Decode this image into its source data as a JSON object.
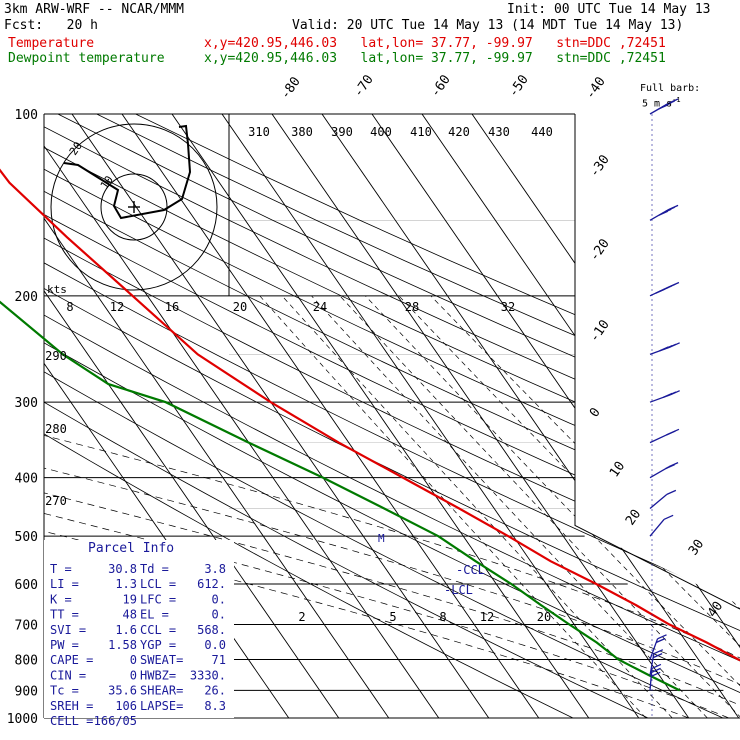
{
  "header": {
    "model": "3km ARW-WRF -- NCAR/MMM",
    "init": "Init: 00 UTC Tue 14 May 13",
    "fcst": "Fcst:   20 h",
    "valid": "Valid: 20 UTC Tue 14 May 13 (14 MDT Tue 14 May 13)",
    "temp_label": "Temperature",
    "dew_label": "Dewpoint temperature",
    "location": "x,y=420.95,446.03   lat,lon= 37.77, -99.97   stn=DDC ,72451"
  },
  "wind_barb_legend": {
    "line1": "Full barb:",
    "line2": "5 m s",
    "sup": "-1"
  },
  "hodograph": {
    "units": "kts",
    "ring_labels": [
      "10",
      "20"
    ]
  },
  "colors": {
    "temperature": "#e00000",
    "dewpoint": "#007a00",
    "barbs": "#1a1a9a",
    "moist_adiabat": "#000000"
  },
  "parcel_info": {
    "title": "Parcel Info",
    "rows": [
      [
        "T  =",
        "30.8",
        "Td =",
        "3.8"
      ],
      [
        "LI =",
        "1.3",
        "LCL =",
        "612."
      ],
      [
        "K  =",
        "19",
        "LFC =",
        "0."
      ],
      [
        "TT =",
        "48",
        "EL  =",
        "0."
      ],
      [
        "SVI =",
        "1.6",
        "CCL =",
        "568."
      ],
      [
        "PW =",
        "1.58",
        "YGP =",
        "0.0"
      ],
      [
        "CAPE =",
        "0",
        "SWEAT=",
        "71"
      ],
      [
        "CIN =",
        "0",
        "HWBZ=",
        "3330."
      ],
      [
        "Tc =",
        "35.6",
        "SHEAR=",
        "26."
      ],
      [
        "SREH =",
        "106",
        "LAPSE=",
        "8.3"
      ],
      [
        "CELL =",
        "166/05",
        "",
        ""
      ]
    ]
  },
  "markers": {
    "ccl": "-CCL",
    "lcl": "-LCL",
    "m": "M"
  },
  "chart_data": {
    "type": "line",
    "skewt": true,
    "pressure_levels": [
      100,
      200,
      300,
      400,
      500,
      600,
      700,
      800,
      900,
      1000
    ],
    "isotherm_labels": [
      "-80",
      "-70",
      "-60",
      "-50",
      "-40",
      "-30",
      "-20",
      "-10",
      "0",
      "10",
      "20",
      "30",
      "40"
    ],
    "isotherms_c": [
      -80,
      -70,
      -60,
      -50,
      -40,
      -30,
      -20,
      -10,
      0,
      10,
      20,
      30,
      40
    ],
    "theta_labels": [
      "310",
      "380",
      "390",
      "400",
      "410",
      "420",
      "430",
      "440"
    ],
    "mixing_ratio_labels_top": [
      "8",
      "12",
      "16",
      "20",
      "24",
      "28",
      "32"
    ],
    "mixing_ratio_labels_low": [
      "2",
      "5",
      "8",
      "12",
      "20"
    ],
    "dry_adiabat_labels": [
      "290",
      "280",
      "270"
    ],
    "series": [
      {
        "name": "Temperature",
        "points": [
          [
            100,
            -63
          ],
          [
            130,
            -62
          ],
          [
            160,
            -58
          ],
          [
            200,
            -53
          ],
          [
            250,
            -48
          ],
          [
            300,
            -40
          ],
          [
            350,
            -32
          ],
          [
            400,
            -24
          ],
          [
            450,
            -17
          ],
          [
            500,
            -11
          ],
          [
            550,
            -6
          ],
          [
            600,
            0
          ],
          [
            650,
            5
          ],
          [
            700,
            9
          ],
          [
            750,
            14
          ],
          [
            800,
            18
          ],
          [
            850,
            23
          ],
          [
            900,
            29
          ]
        ]
      },
      {
        "name": "Dewpoint temperature",
        "points": [
          [
            100,
            -88
          ],
          [
            130,
            -88
          ],
          [
            160,
            -85
          ],
          [
            200,
            -81
          ],
          [
            250,
            -75
          ],
          [
            280,
            -70
          ],
          [
            300,
            -61
          ],
          [
            350,
            -50
          ],
          [
            400,
            -40
          ],
          [
            450,
            -32
          ],
          [
            500,
            -25
          ],
          [
            550,
            -21
          ],
          [
            600,
            -17
          ],
          [
            650,
            -14
          ],
          [
            700,
            -11
          ],
          [
            750,
            -8
          ],
          [
            800,
            -6
          ],
          [
            850,
            -2
          ],
          [
            900,
            2
          ]
        ]
      }
    ],
    "wind_barbs": [
      {
        "p": 100,
        "spd": 35,
        "dir": 240
      },
      {
        "p": 150,
        "spd": 40,
        "dir": 240
      },
      {
        "p": 200,
        "spd": 45,
        "dir": 245
      },
      {
        "p": 250,
        "spd": 40,
        "dir": 250
      },
      {
        "p": 300,
        "spd": 30,
        "dir": 250
      },
      {
        "p": 350,
        "spd": 20,
        "dir": 245
      },
      {
        "p": 400,
        "spd": 15,
        "dir": 240
      },
      {
        "p": 450,
        "spd": 10,
        "dir": 230
      },
      {
        "p": 500,
        "spd": 10,
        "dir": 220
      },
      {
        "p": 800,
        "spd": 15,
        "dir": 200
      },
      {
        "p": 850,
        "spd": 20,
        "dir": 190
      },
      {
        "p": 900,
        "spd": 25,
        "dir": 185
      }
    ]
  }
}
